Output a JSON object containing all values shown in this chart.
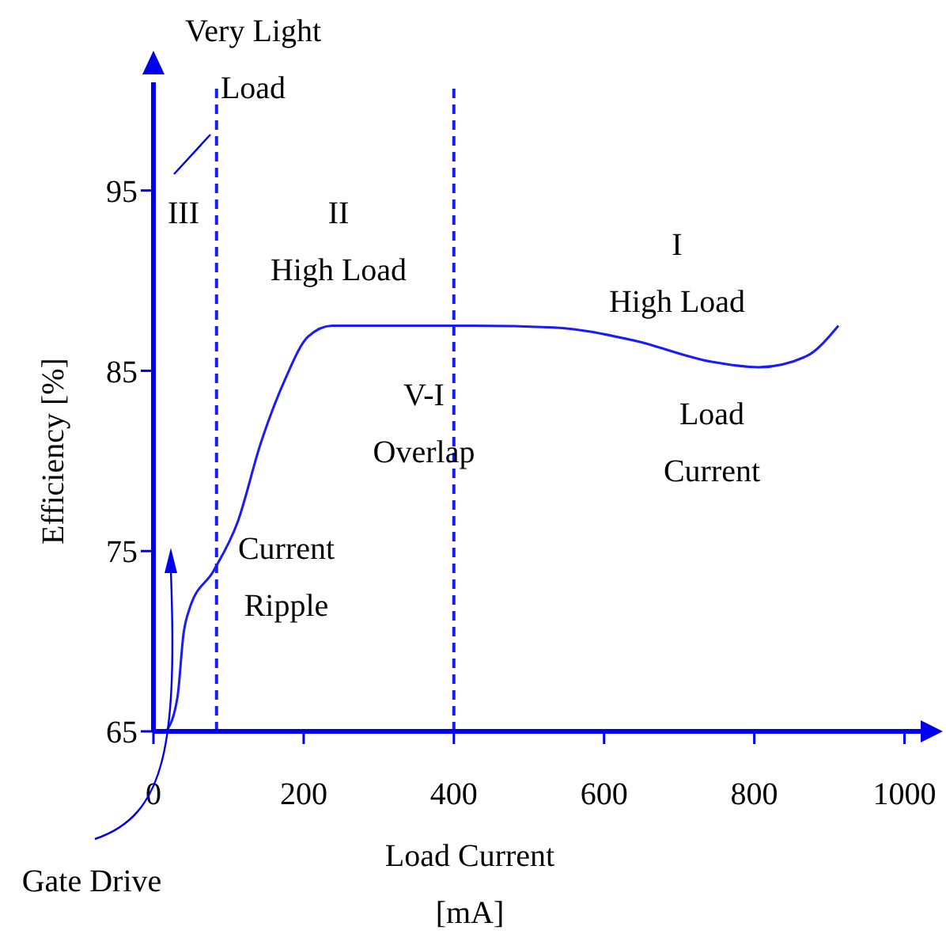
{
  "chart_data": {
    "type": "line",
    "xlabel": "Load Current\n[mA]",
    "ylabel": "Efficiency [%]",
    "x": [
      17,
      32,
      40,
      48,
      80,
      112,
      143,
      175,
      206,
      238,
      322,
      427,
      533,
      638,
      743,
      806,
      869,
      912
    ],
    "series": [
      {
        "color": "#1a1aff",
        "values": [
          65,
          66.9,
          70.4,
          71.8,
          73.9,
          76.6,
          81,
          84.5,
          86.9,
          87.5,
          87.5,
          87.5,
          87.4,
          86.7,
          85.5,
          85.2,
          85.8,
          87.5
        ]
      }
    ],
    "xlim": [
      0,
      1030
    ],
    "xticks": [
      0,
      200,
      400,
      600,
      800,
      1000
    ],
    "ylim": [
      65,
      101
    ],
    "yticks": [
      65,
      75,
      85,
      95
    ],
    "ref_lines": [
      {
        "axis": "x",
        "value": 84,
        "color": "#1a1aff",
        "line_style": "dashed"
      },
      {
        "axis": "x",
        "value": 400,
        "color": "#1a1aff",
        "line_style": "dashed"
      }
    ],
    "annotations": [
      "Very Light\nLoad",
      "III",
      "II\nHigh Load",
      "I\nHigh Load",
      "V-I\nOverlap",
      "Load\nCurrent",
      "Current\nRipple",
      "Gate Drive"
    ],
    "grid": false,
    "legend": false,
    "marker": "none",
    "line_style": "solid"
  }
}
